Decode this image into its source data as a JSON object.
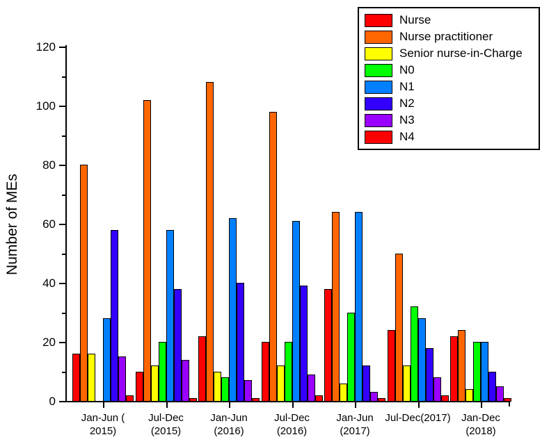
{
  "figure": {
    "background": "#ffffff",
    "axis_color": "#000000"
  },
  "y_axis": {
    "label": "Number of MEs",
    "major_ticks": [
      0,
      20,
      40,
      60,
      80,
      100,
      120
    ],
    "minor_tick_step": 10,
    "max": 120
  },
  "x_axis": {
    "label_lines": [
      [
        "Jan-Jun (",
        "2015)"
      ],
      [
        "Jul-Dec",
        "(2015)"
      ],
      [
        "Jan-Jun",
        "(2016)"
      ],
      [
        "Jul-Dec",
        "(2016)"
      ],
      [
        "Jan-Jun",
        "(2017)"
      ],
      [
        "Jul-Dec(2017)"
      ],
      [
        "Jan-Dec",
        "(2018)"
      ]
    ]
  },
  "chart_data": {
    "type": "bar",
    "title": "",
    "xlabel": "",
    "ylabel": "Number of MEs",
    "ylim": [
      0,
      120
    ],
    "grid": false,
    "legend_position": "top-right",
    "categories": [
      "Jan-Jun ( 2015)",
      "Jul-Dec (2015)",
      "Jan-Jun (2016)",
      "Jul-Dec (2016)",
      "Jan-Jun (2017)",
      "Jul-Dec(2017)",
      "Jan-Dec (2018)"
    ],
    "series": [
      {
        "name": "Nurse",
        "color": "#FF0000",
        "values": [
          16,
          10,
          22,
          20,
          38,
          24,
          22
        ]
      },
      {
        "name": "Nurse practitioner",
        "color": "#FF6600",
        "values": [
          80,
          102,
          108,
          98,
          64,
          50,
          24
        ]
      },
      {
        "name": "Senior nurse-in-Charge",
        "color": "#FFFF00",
        "values": [
          16,
          12,
          10,
          12,
          6,
          12,
          4
        ]
      },
      {
        "name": "N0",
        "color": "#00FF00",
        "values": [
          0,
          20,
          8,
          20,
          30,
          32,
          20
        ]
      },
      {
        "name": "N1",
        "color": "#0080FF",
        "values": [
          28,
          58,
          62,
          61,
          64,
          28,
          20
        ]
      },
      {
        "name": "N2",
        "color": "#3300FF",
        "values": [
          58,
          38,
          40,
          39,
          12,
          18,
          10
        ]
      },
      {
        "name": "N3",
        "color": "#9900FF",
        "values": [
          15,
          14,
          7,
          9,
          3,
          8,
          5
        ]
      },
      {
        "name": "N4",
        "color": "#FF0000",
        "values": [
          2,
          1,
          1,
          2,
          1,
          2,
          1
        ]
      }
    ]
  }
}
